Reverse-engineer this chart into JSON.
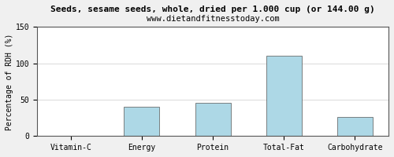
{
  "title": "Seeds, sesame seeds, whole, dried per 1.000 cup (or 144.00 g)",
  "subtitle": "www.dietandfitnesstoday.com",
  "categories": [
    "Vitamin-C",
    "Energy",
    "Protein",
    "Total-Fat",
    "Carbohydrate"
  ],
  "values": [
    0,
    40,
    46,
    111,
    26
  ],
  "bar_color": "#add8e6",
  "ylabel": "Percentage of RDH (%)",
  "ylim": [
    0,
    150
  ],
  "yticks": [
    0,
    50,
    100,
    150
  ],
  "title_fontsize": 8,
  "subtitle_fontsize": 7.5,
  "tick_fontsize": 7,
  "ylabel_fontsize": 7,
  "background_color": "#f0f0f0",
  "plot_bg_color": "#ffffff",
  "border_color": "#555555",
  "grid_color": "#cccccc"
}
